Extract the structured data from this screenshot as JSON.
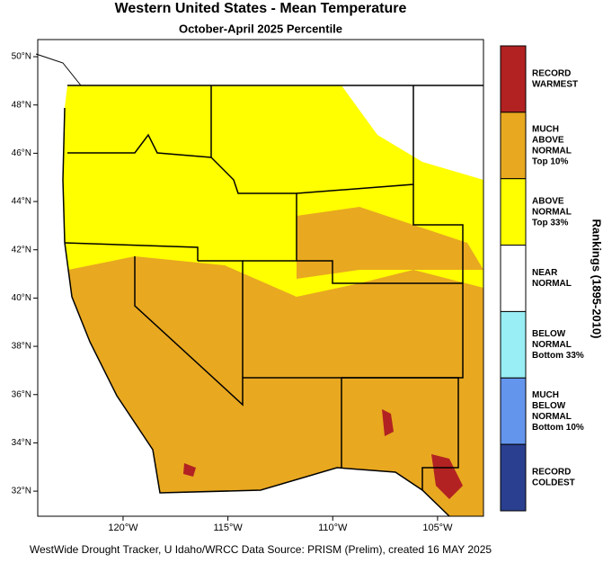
{
  "header": {
    "title": "Western United States - Mean Temperature",
    "subtitle": "October-April 2025 Percentile"
  },
  "map": {
    "xlim": [
      -124.07,
      -102.81
    ],
    "ylim": [
      30.96,
      50.71
    ],
    "xticks": [
      {
        "value": -120,
        "label": "120°W"
      },
      {
        "value": -115,
        "label": "115°W"
      },
      {
        "value": -110,
        "label": "110°W"
      },
      {
        "value": -105,
        "label": "105°W"
      }
    ],
    "yticks": [
      {
        "value": 50,
        "label": "50°N"
      },
      {
        "value": 48,
        "label": "48°N"
      },
      {
        "value": 46,
        "label": "46°N"
      },
      {
        "value": 44,
        "label": "44°N"
      },
      {
        "value": 42,
        "label": "42°N"
      },
      {
        "value": 40,
        "label": "40°N"
      },
      {
        "value": 38,
        "label": "38°N"
      },
      {
        "value": 36,
        "label": "36°N"
      },
      {
        "value": 34,
        "label": "34°N"
      },
      {
        "value": 32,
        "label": "32°N"
      }
    ]
  },
  "legend": {
    "title": "Rankings (1895-2010)",
    "items": [
      {
        "color": "#b22222",
        "lines": [
          "RECORD",
          "WARMEST"
        ]
      },
      {
        "color": "#e8a820",
        "lines": [
          "MUCH",
          "ABOVE",
          "NORMAL",
          "Top 10%"
        ]
      },
      {
        "color": "#ffff00",
        "lines": [
          "ABOVE",
          "NORMAL",
          "Top 33%"
        ]
      },
      {
        "color": "#ffffff",
        "lines": [
          "NEAR",
          "NORMAL"
        ]
      },
      {
        "color": "#99eef5",
        "lines": [
          "BELOW",
          "NORMAL",
          "Bottom 33%"
        ]
      },
      {
        "color": "#6495ed",
        "lines": [
          "MUCH",
          "BELOW",
          "NORMAL",
          "Bottom 10%"
        ]
      },
      {
        "color": "#2a3f8f",
        "lines": [
          "RECORD",
          "COLDEST"
        ]
      }
    ]
  },
  "footer": "WestWide Drought Tracker, U Idaho/WRCC Data Source: PRISM (Prelim), created 16 MAY 2025"
}
